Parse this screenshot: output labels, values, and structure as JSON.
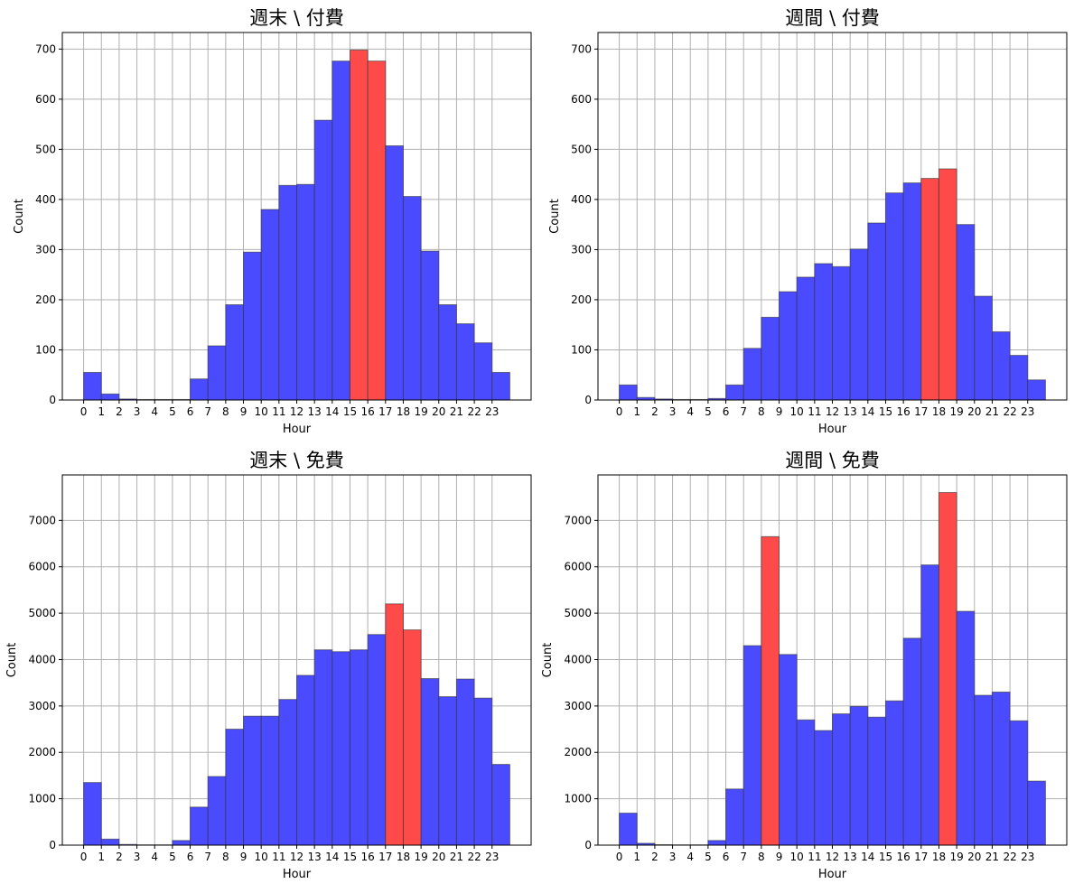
{
  "chart_data": [
    {
      "type": "bar",
      "title": "週末 \\ 付費",
      "xlabel": "Hour",
      "ylabel": "Count",
      "categories": [
        "0",
        "1",
        "2",
        "3",
        "4",
        "5",
        "6",
        "7",
        "8",
        "9",
        "10",
        "11",
        "12",
        "13",
        "14",
        "15",
        "16",
        "17",
        "18",
        "19",
        "20",
        "21",
        "22",
        "23"
      ],
      "values": [
        55,
        12,
        2,
        1,
        1,
        1,
        42,
        108,
        190,
        295,
        380,
        428,
        430,
        558,
        676,
        698,
        676,
        507,
        406,
        297,
        190,
        152,
        114,
        55
      ],
      "highlight": [
        15,
        16
      ],
      "yticks": [
        0,
        100,
        200,
        300,
        400,
        500,
        600,
        700
      ],
      "ylim": [
        0,
        733
      ],
      "grid": true
    },
    {
      "type": "bar",
      "title": "週間 \\ 付費",
      "xlabel": "Hour",
      "ylabel": "Count",
      "categories": [
        "0",
        "1",
        "2",
        "3",
        "4",
        "5",
        "6",
        "7",
        "8",
        "9",
        "10",
        "11",
        "12",
        "13",
        "14",
        "15",
        "16",
        "17",
        "18",
        "19",
        "20",
        "21",
        "22",
        "23"
      ],
      "values": [
        30,
        5,
        2,
        1,
        1,
        3,
        30,
        103,
        165,
        216,
        245,
        272,
        266,
        301,
        353,
        413,
        433,
        442,
        461,
        350,
        207,
        136,
        89,
        40
      ],
      "highlight": [
        17,
        18
      ],
      "yticks": [
        0,
        100,
        200,
        300,
        400,
        500,
        600,
        700
      ],
      "ylim": [
        0,
        733
      ],
      "grid": true
    },
    {
      "type": "bar",
      "title": "週末 \\ 免費",
      "xlabel": "Hour",
      "ylabel": "Count",
      "categories": [
        "0",
        "1",
        "2",
        "3",
        "4",
        "5",
        "6",
        "7",
        "8",
        "9",
        "10",
        "11",
        "12",
        "13",
        "14",
        "15",
        "16",
        "17",
        "18",
        "19",
        "20",
        "21",
        "22",
        "23"
      ],
      "values": [
        1350,
        130,
        15,
        5,
        5,
        100,
        820,
        1480,
        2500,
        2780,
        2780,
        3140,
        3660,
        4210,
        4170,
        4210,
        4540,
        5200,
        4640,
        3590,
        3200,
        3580,
        3170,
        1740
      ],
      "highlight": [
        17,
        18
      ],
      "yticks": [
        0,
        1000,
        2000,
        3000,
        4000,
        5000,
        6000,
        7000
      ],
      "ylim": [
        0,
        7980
      ],
      "grid": true
    },
    {
      "type": "bar",
      "title": "週間 \\ 免費",
      "xlabel": "Hour",
      "ylabel": "Count",
      "categories": [
        "0",
        "1",
        "2",
        "3",
        "4",
        "5",
        "6",
        "7",
        "8",
        "9",
        "10",
        "11",
        "12",
        "13",
        "14",
        "15",
        "16",
        "17",
        "18",
        "19",
        "20",
        "21",
        "22",
        "23"
      ],
      "values": [
        690,
        40,
        10,
        5,
        5,
        100,
        1210,
        4300,
        6650,
        4110,
        2700,
        2470,
        2830,
        2990,
        2760,
        3110,
        4460,
        6040,
        7600,
        5040,
        3230,
        3300,
        2680,
        1380
      ],
      "highlight": [
        8,
        18
      ],
      "yticks": [
        0,
        1000,
        2000,
        3000,
        4000,
        5000,
        6000,
        7000
      ],
      "ylim": [
        0,
        7980
      ],
      "grid": true
    }
  ],
  "colors": {
    "bar": "#4a4aff",
    "highlight": "#ff4a4a",
    "grid": "#b0b0b0",
    "axis": "#000000"
  }
}
